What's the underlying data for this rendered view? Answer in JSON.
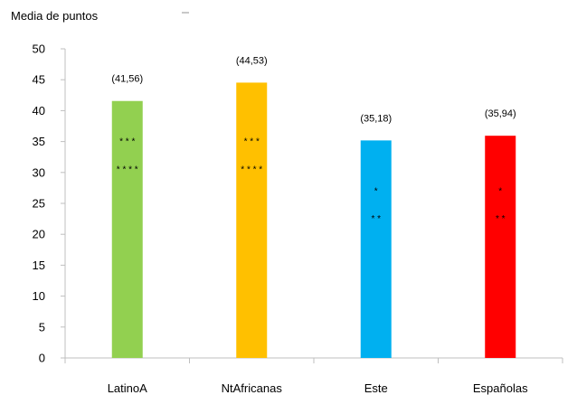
{
  "chart_data": {
    "type": "bar",
    "title": "",
    "ylabel": "Media de puntos",
    "xlabel": "",
    "ylim": [
      0,
      50
    ],
    "yticks": [
      0,
      5,
      10,
      15,
      20,
      25,
      30,
      35,
      40,
      45,
      50
    ],
    "grid": false,
    "categories": [
      "LatinoA",
      "NtAfricanas",
      "Este",
      "Españolas"
    ],
    "values": [
      41.56,
      44.53,
      35.18,
      35.94
    ],
    "data_labels": [
      "(41,56)",
      "(44,53)",
      "(35,18)",
      "(35,94)"
    ],
    "colors": [
      "#92d050",
      "#ffc000",
      "#00b0f0",
      "#ff0000"
    ],
    "annotations": [
      {
        "category": "LatinoA",
        "marks": [
          {
            "text": "* * *",
            "y": 35
          },
          {
            "text": "* * * *",
            "y": 30.5
          }
        ]
      },
      {
        "category": "NtAfricanas",
        "marks": [
          {
            "text": "* * *",
            "y": 35
          },
          {
            "text": "* * * *",
            "y": 30.5
          }
        ]
      },
      {
        "category": "Este",
        "marks": [
          {
            "text": "*",
            "y": 27
          },
          {
            "text": "* *",
            "y": 22.5
          }
        ]
      },
      {
        "category": "Españolas",
        "marks": [
          {
            "text": "*",
            "y": 27
          },
          {
            "text": "* *",
            "y": 22.5
          }
        ]
      }
    ]
  }
}
